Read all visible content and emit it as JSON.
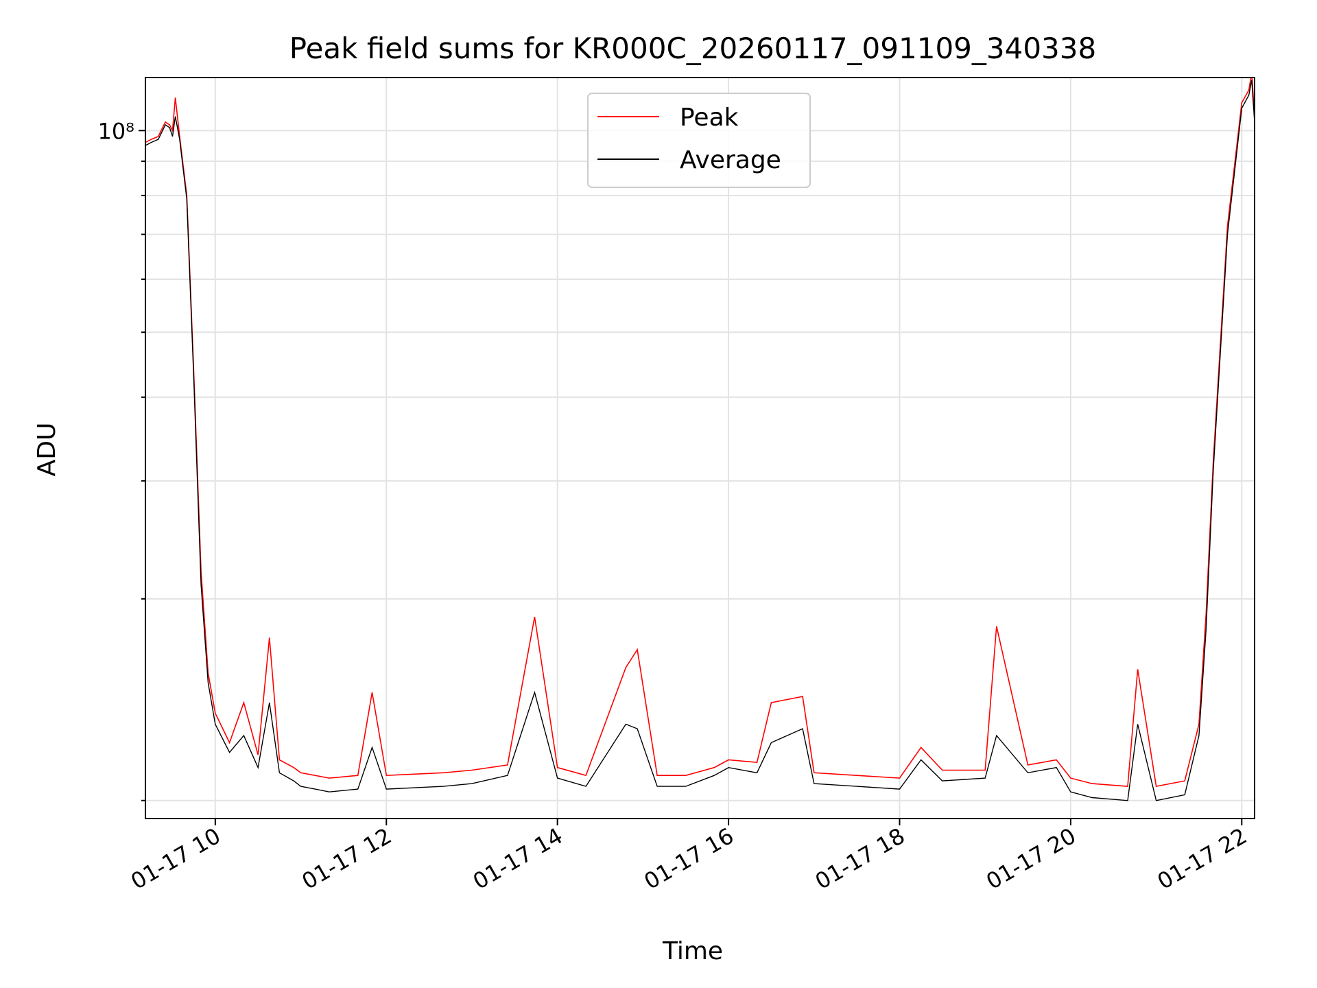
{
  "chart_data": {
    "type": "line",
    "title": "Peak field sums for KR000C_20260117_091109_340338",
    "xlabel": "Time",
    "ylabel": "ADU",
    "yscale": "log",
    "ylim": [
      9400000.0,
      120000000.0
    ],
    "xlim": [
      "2026-01-17 09:11",
      "2026-01-17 22:09"
    ],
    "grid": true,
    "legend_position": "top-center",
    "x_ticks": [
      "01-17 10",
      "01-17 12",
      "01-17 14",
      "01-17 16",
      "01-17 18",
      "01-17 20",
      "01-17 22"
    ],
    "y_ticks": [
      "10⁸"
    ],
    "series": [
      {
        "name": "Peak",
        "color": "#ff0000",
        "x": [
          "2026-01-17 09:11",
          "2026-01-17 09:15",
          "2026-01-17 09:20",
          "2026-01-17 09:25",
          "2026-01-17 09:28",
          "2026-01-17 09:30",
          "2026-01-17 09:32",
          "2026-01-17 09:35",
          "2026-01-17 09:40",
          "2026-01-17 09:45",
          "2026-01-17 09:50",
          "2026-01-17 09:55",
          "2026-01-17 10:00",
          "2026-01-17 10:10",
          "2026-01-17 10:20",
          "2026-01-17 10:30",
          "2026-01-17 10:38",
          "2026-01-17 10:45",
          "2026-01-17 10:55",
          "2026-01-17 11:00",
          "2026-01-17 11:10",
          "2026-01-17 11:20",
          "2026-01-17 11:40",
          "2026-01-17 11:50",
          "2026-01-17 12:00",
          "2026-01-17 12:40",
          "2026-01-17 13:00",
          "2026-01-17 13:25",
          "2026-01-17 13:44",
          "2026-01-17 14:00",
          "2026-01-17 14:20",
          "2026-01-17 14:48",
          "2026-01-17 14:56",
          "2026-01-17 15:10",
          "2026-01-17 15:30",
          "2026-01-17 15:50",
          "2026-01-17 16:00",
          "2026-01-17 16:20",
          "2026-01-17 16:30",
          "2026-01-17 16:52",
          "2026-01-17 17:00",
          "2026-01-17 17:30",
          "2026-01-17 18:00",
          "2026-01-17 18:15",
          "2026-01-17 18:30",
          "2026-01-17 19:00",
          "2026-01-17 19:08",
          "2026-01-17 19:30",
          "2026-01-17 19:50",
          "2026-01-17 20:00",
          "2026-01-17 20:15",
          "2026-01-17 20:40",
          "2026-01-17 20:47",
          "2026-01-17 21:00",
          "2026-01-17 21:20",
          "2026-01-17 21:30",
          "2026-01-17 21:35",
          "2026-01-17 21:40",
          "2026-01-17 21:50",
          "2026-01-17 22:00",
          "2026-01-17 22:05",
          "2026-01-17 22:07",
          "2026-01-17 22:09"
        ],
        "values": [
          96000000.0,
          97000000.0,
          98000000.0,
          103000000.0,
          102000000.0,
          100000000.0,
          112000000.0,
          98000000.0,
          80000000.0,
          43000000.0,
          22000000.0,
          15500000.0,
          13500000.0,
          12200000.0,
          14000000.0,
          11700000.0,
          17500000.0,
          11500000.0,
          11200000.0,
          11000000.0,
          10900000.0,
          10800000.0,
          10900000.0,
          14500000.0,
          10900000.0,
          11000000.0,
          11100000.0,
          11300000.0,
          18800000.0,
          11200000.0,
          10900000.0,
          15800000.0,
          16800000.0,
          10900000.0,
          10900000.0,
          11200000.0,
          11500000.0,
          11400000.0,
          14000000.0,
          14300000.0,
          11000000.0,
          10900000.0,
          10800000.0,
          12000000.0,
          11100000.0,
          11100000.0,
          18200000.0,
          11300000.0,
          11500000.0,
          10800000.0,
          10600000.0,
          10500000.0,
          15700000.0,
          10500000.0,
          10700000.0,
          13000000.0,
          19000000.0,
          32000000.0,
          72000000.0,
          110000000.0,
          115000000.0,
          122000000.0,
          105000000.0
        ]
      },
      {
        "name": "Average",
        "color": "#000000",
        "x": [
          "2026-01-17 09:11",
          "2026-01-17 09:15",
          "2026-01-17 09:20",
          "2026-01-17 09:25",
          "2026-01-17 09:28",
          "2026-01-17 09:30",
          "2026-01-17 09:32",
          "2026-01-17 09:35",
          "2026-01-17 09:40",
          "2026-01-17 09:45",
          "2026-01-17 09:50",
          "2026-01-17 09:55",
          "2026-01-17 10:00",
          "2026-01-17 10:10",
          "2026-01-17 10:20",
          "2026-01-17 10:30",
          "2026-01-17 10:38",
          "2026-01-17 10:45",
          "2026-01-17 10:55",
          "2026-01-17 11:00",
          "2026-01-17 11:10",
          "2026-01-17 11:20",
          "2026-01-17 11:40",
          "2026-01-17 11:50",
          "2026-01-17 12:00",
          "2026-01-17 12:40",
          "2026-01-17 13:00",
          "2026-01-17 13:25",
          "2026-01-17 13:44",
          "2026-01-17 14:00",
          "2026-01-17 14:20",
          "2026-01-17 14:48",
          "2026-01-17 14:56",
          "2026-01-17 15:10",
          "2026-01-17 15:30",
          "2026-01-17 15:50",
          "2026-01-17 16:00",
          "2026-01-17 16:20",
          "2026-01-17 16:30",
          "2026-01-17 16:52",
          "2026-01-17 17:00",
          "2026-01-17 17:30",
          "2026-01-17 18:00",
          "2026-01-17 18:15",
          "2026-01-17 18:30",
          "2026-01-17 19:00",
          "2026-01-17 19:08",
          "2026-01-17 19:30",
          "2026-01-17 19:50",
          "2026-01-17 20:00",
          "2026-01-17 20:15",
          "2026-01-17 20:40",
          "2026-01-17 20:47",
          "2026-01-17 21:00",
          "2026-01-17 21:20",
          "2026-01-17 21:30",
          "2026-01-17 21:35",
          "2026-01-17 21:40",
          "2026-01-17 21:50",
          "2026-01-17 22:00",
          "2026-01-17 22:05",
          "2026-01-17 22:07",
          "2026-01-17 22:09"
        ],
        "values": [
          95000000.0,
          96000000.0,
          97000000.0,
          102000000.0,
          101000000.0,
          98000000.0,
          105000000.0,
          97000000.0,
          79000000.0,
          42000000.0,
          21000000.0,
          15000000.0,
          13000000.0,
          11800000.0,
          12500000.0,
          11200000.0,
          14000000.0,
          11000000.0,
          10700000.0,
          10500000.0,
          10400000.0,
          10300000.0,
          10400000.0,
          12000000.0,
          10400000.0,
          10500000.0,
          10600000.0,
          10900000.0,
          14500000.0,
          10800000.0,
          10500000.0,
          13000000.0,
          12800000.0,
          10500000.0,
          10500000.0,
          10900000.0,
          11200000.0,
          11000000.0,
          12200000.0,
          12800000.0,
          10600000.0,
          10500000.0,
          10400000.0,
          11500000.0,
          10700000.0,
          10800000.0,
          12500000.0,
          11000000.0,
          11200000.0,
          10300000.0,
          10100000.0,
          10000000.0,
          13000000.0,
          10000000.0,
          10200000.0,
          12500000.0,
          18000000.0,
          31000000.0,
          70000000.0,
          108000000.0,
          113000000.0,
          119000000.0,
          103000000.0
        ]
      }
    ]
  }
}
